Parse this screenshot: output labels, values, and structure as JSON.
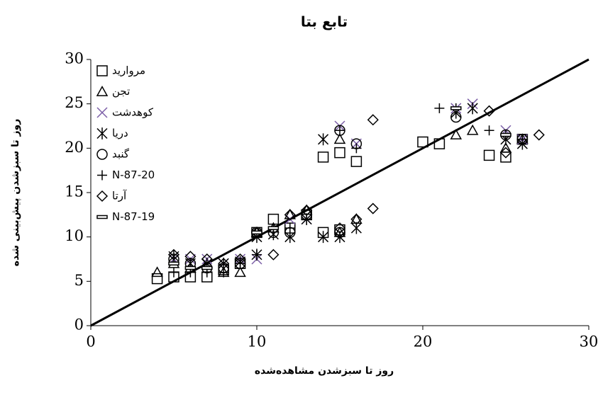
{
  "chart_data": {
    "type": "scatter",
    "title": "تابع بتا",
    "x_label": "روز تا سبزشدن مشاهده‌شده",
    "y_label": "روز تا سبزشدن پیش‌بینی شده",
    "xlim": [
      0,
      30
    ],
    "ylim": [
      0,
      30
    ],
    "xticks": [
      0,
      10,
      20,
      30
    ],
    "yticks": [
      0,
      5,
      10,
      15,
      20,
      25,
      30
    ],
    "identity_line": true,
    "legend": "upper left",
    "series": [
      {
        "name": "مروارید",
        "color": "#000000",
        "marker": "square",
        "x": [
          4,
          5,
          6,
          7,
          8,
          9,
          10,
          11,
          12,
          13,
          14,
          14,
          15,
          15,
          16,
          20,
          21,
          24,
          25,
          26
        ],
        "values": [
          5.3,
          5.5,
          5.5,
          5.5,
          6.3,
          7,
          10.5,
          12,
          11,
          12.5,
          19,
          10.5,
          19.5,
          10.8,
          18.5,
          20.7,
          20.5,
          19.2,
          19,
          21
        ]
      },
      {
        "name": "تجن",
        "color": "#000000",
        "marker": "triangle",
        "x": [
          4,
          5,
          6,
          7,
          8,
          9,
          10,
          11,
          12,
          13,
          15,
          15,
          16,
          22,
          23,
          25,
          26
        ],
        "values": [
          6,
          7,
          6.5,
          7,
          6,
          6,
          10.5,
          11,
          12.5,
          13,
          21,
          10.5,
          12,
          21.5,
          22,
          20,
          21
        ]
      },
      {
        "name": "کوهدشت",
        "color": "#7b5ea7",
        "marker": "x",
        "x": [
          5,
          6,
          7,
          8,
          9,
          10,
          12,
          13,
          15,
          16,
          22,
          23,
          25,
          26
        ],
        "values": [
          7.5,
          7.5,
          7.5,
          7,
          7.5,
          7.5,
          12,
          12,
          22.5,
          20.5,
          24.5,
          25,
          22,
          21
        ]
      },
      {
        "name": "دریا",
        "color": "#000000",
        "marker": "asterisk",
        "x": [
          5,
          6,
          7,
          8,
          9,
          10,
          10,
          11,
          12,
          13,
          14,
          14,
          15,
          16,
          22,
          23,
          25,
          26
        ],
        "values": [
          7.8,
          7,
          7,
          7,
          7.2,
          8,
          10,
          10.3,
          10,
          12,
          21,
          10,
          10,
          11,
          24,
          24.5,
          21,
          20.5
        ]
      },
      {
        "name": "گنبد",
        "color": "#000000",
        "marker": "circle",
        "x": [
          5,
          6,
          7,
          8,
          9,
          10,
          11,
          12,
          13,
          15,
          15,
          16,
          22,
          25,
          26
        ],
        "values": [
          7.5,
          7,
          6.5,
          6.5,
          7,
          10.5,
          10.5,
          10.5,
          12.5,
          22,
          10.5,
          20.5,
          23.5,
          21.5,
          21
        ]
      },
      {
        "name": "N-87-20",
        "color": "#000000",
        "marker": "plus",
        "x": [
          5,
          6,
          7,
          8,
          9,
          10,
          11,
          12,
          13,
          15,
          16,
          21,
          22,
          24,
          25,
          26
        ],
        "values": [
          6,
          6,
          6,
          6,
          7,
          8,
          11,
          11,
          12,
          22,
          20,
          24.5,
          24.5,
          22,
          21.5,
          21
        ]
      },
      {
        "name": "آرتا",
        "color": "#000000",
        "marker": "diamond",
        "x": [
          5,
          6,
          7,
          8,
          9,
          10,
          11,
          12,
          13,
          15,
          16,
          17,
          17,
          24,
          25,
          27
        ],
        "values": [
          8,
          7.8,
          7.5,
          7,
          7.5,
          10.5,
          8,
          12.5,
          13,
          11,
          12,
          23.2,
          13.2,
          24.2,
          19.5,
          21.5
        ]
      },
      {
        "name": "N-87-19",
        "color": "#000000",
        "marker": "dash",
        "x": [
          5,
          6,
          7,
          10,
          11,
          22,
          25
        ],
        "values": [
          7,
          6.5,
          6.5,
          10.5,
          11,
          24.5,
          21.5
        ]
      }
    ]
  }
}
